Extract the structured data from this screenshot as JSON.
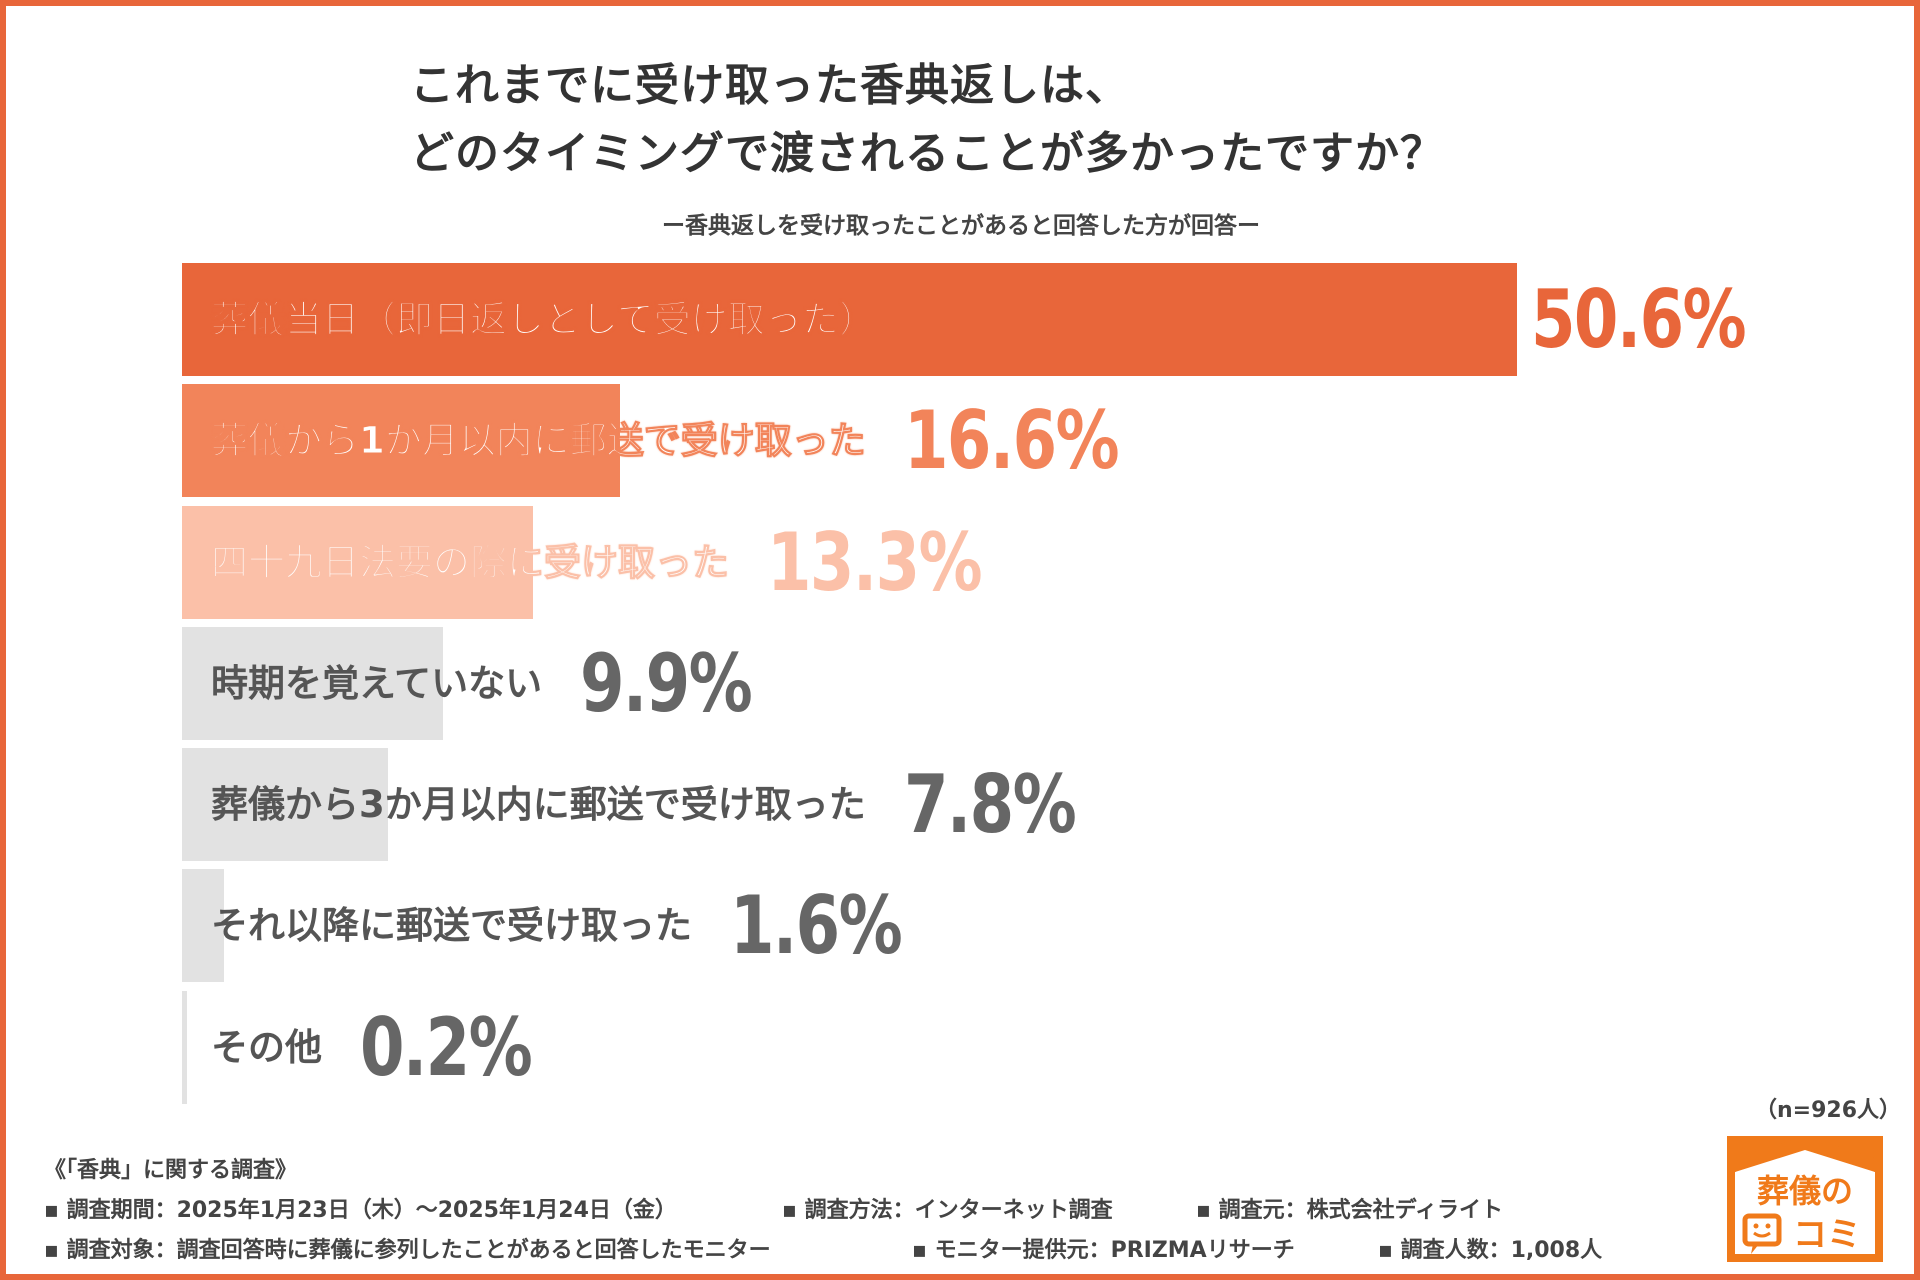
{
  "title_lines": [
    "これまでに受け取った香典返しは、",
    "どのタイミングで渡されることが多かったですか？"
  ],
  "subtitle": "ー香典返しを受け取ったことがあると回答した方が回答ー",
  "chart_data": {
    "type": "bar",
    "orientation": "horizontal",
    "categories": [
      "葬儀当日（即日返しとして受け取った）",
      "葬儀から1か月以内に郵送で受け取った",
      "四十九日法要の際に受け取った",
      "時期を覚えていない",
      "葬儀から3か月以内に郵送で受け取った",
      "それ以降に郵送で受け取った",
      "その他"
    ],
    "values": [
      50.6,
      16.6,
      13.3,
      9.9,
      7.8,
      1.6,
      0.2
    ],
    "value_labels": [
      "50.6%",
      "16.6%",
      "13.3%",
      "9.9%",
      "7.8%",
      "1.6%",
      "0.2%"
    ],
    "bar_colors": [
      "#E8663A",
      "#F2845A",
      "#FBC0A8",
      "#E2E2E2",
      "#E2E2E2",
      "#E2E2E2",
      "#E2E2E2"
    ],
    "value_colors": [
      "#E8663A",
      "#F2845A",
      "#FBC0A8",
      "#666666",
      "#666666",
      "#666666",
      "#666666"
    ],
    "unit": "%",
    "grid": false
  },
  "sample_size": "（n=926人）",
  "footer": {
    "heading": "《「香典」に関する調査》",
    "line1": [
      "▪ 調査期間：2025年1月23日（木）〜2025年1月24日（金）",
      "▪ 調査方法：インターネット調査",
      "▪ 調査元：株式会社ディライト"
    ],
    "line2": [
      "▪ 調査対象：調査回答時に葬儀に参列したことがあると回答したモニター",
      "▪ モニター提供元：PRIZMAリサーチ",
      "▪ 調査人数：1,008人"
    ]
  },
  "logo": {
    "text_top": "葬儀の",
    "text_bottom": "コミ",
    "color": "#F07A1A"
  }
}
